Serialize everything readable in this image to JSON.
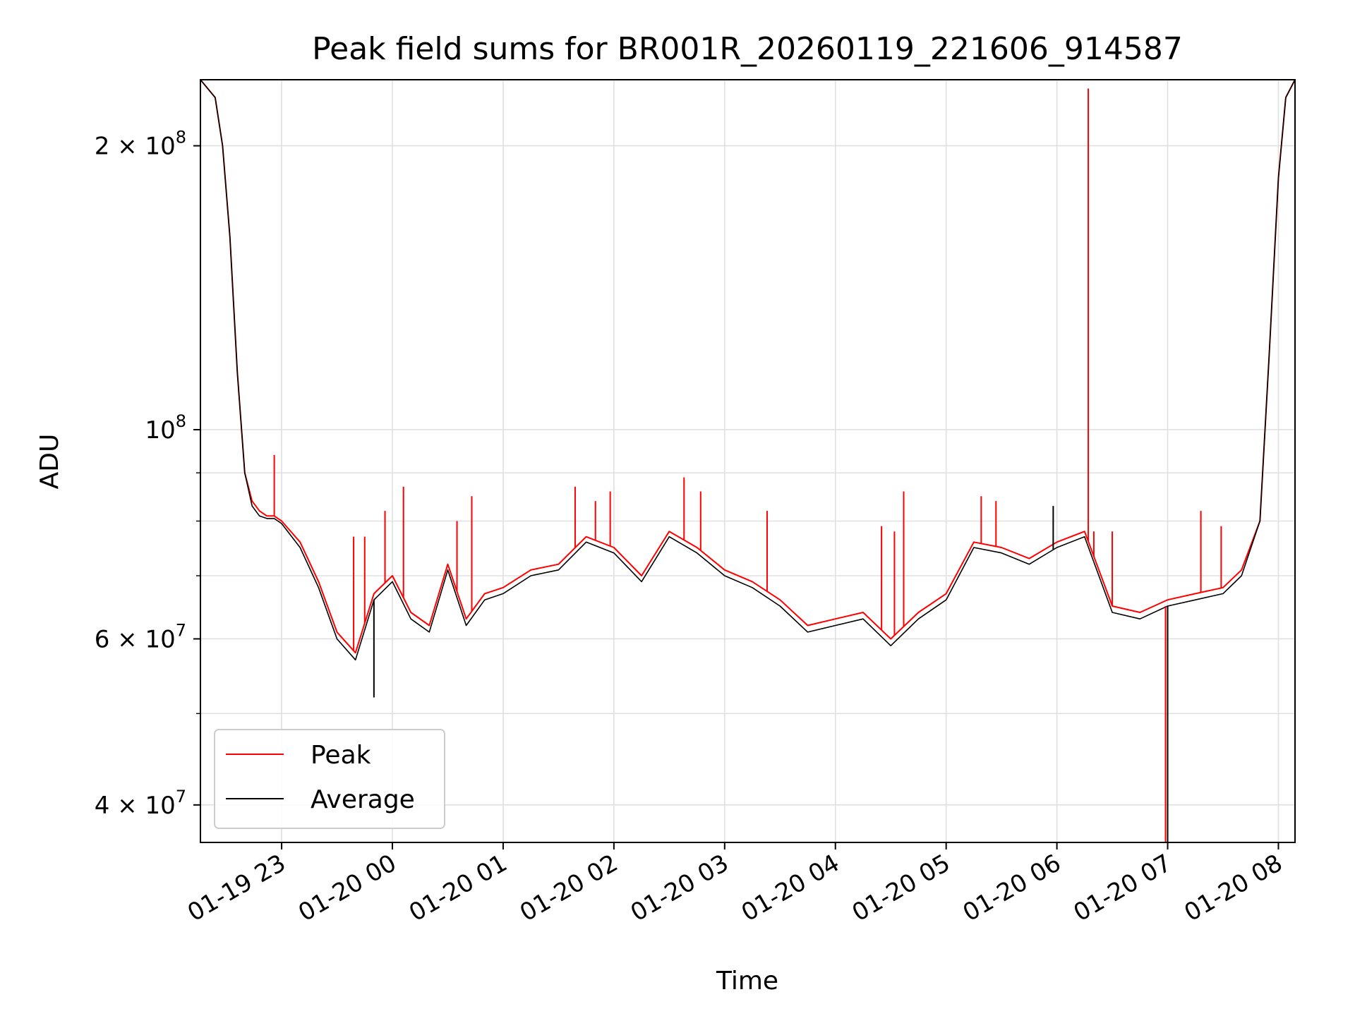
{
  "chart_data": {
    "type": "line",
    "title": "Peak field sums for BR001R_20260119_221606_914587",
    "xlabel": "Time",
    "ylabel": "ADU",
    "yscale": "log",
    "ylim": [
      36500000,
      235000000
    ],
    "xlim": [
      "2026-01-19 22:16",
      "2026-01-20 08:09"
    ],
    "grid": true,
    "legend_position": "lower left",
    "x_ticks": [
      {
        "t": "2026-01-19 23:00",
        "label": "01-19 23"
      },
      {
        "t": "2026-01-20 00:00",
        "label": "01-20 00"
      },
      {
        "t": "2026-01-20 01:00",
        "label": "01-20 01"
      },
      {
        "t": "2026-01-20 02:00",
        "label": "01-20 02"
      },
      {
        "t": "2026-01-20 03:00",
        "label": "01-20 03"
      },
      {
        "t": "2026-01-20 04:00",
        "label": "01-20 04"
      },
      {
        "t": "2026-01-20 05:00",
        "label": "01-20 05"
      },
      {
        "t": "2026-01-20 06:00",
        "label": "01-20 06"
      },
      {
        "t": "2026-01-20 07:00",
        "label": "01-20 07"
      },
      {
        "t": "2026-01-20 08:00",
        "label": "01-20 08"
      }
    ],
    "y_ticks": [
      {
        "value": 40000000,
        "mant": "4",
        "exp": "7"
      },
      {
        "value": 60000000,
        "mant": "6",
        "exp": "7"
      },
      {
        "value": 100000000,
        "mant": "",
        "exp": "8"
      },
      {
        "value": 200000000,
        "mant": "2",
        "exp": "8"
      }
    ],
    "y_minor_ticks": [
      50000000,
      70000000,
      80000000,
      90000000
    ],
    "series": [
      {
        "name": "Peak",
        "color": "#ff0000",
        "x": [
          "2026-01-19 22:16",
          "2026-01-19 22:24",
          "2026-01-19 22:28",
          "2026-01-19 22:32",
          "2026-01-19 22:36",
          "2026-01-19 22:40",
          "2026-01-19 22:44",
          "2026-01-19 22:48",
          "2026-01-19 22:52",
          "2026-01-19 22:56",
          "2026-01-19 23:00",
          "2026-01-19 23:10",
          "2026-01-19 23:20",
          "2026-01-19 23:30",
          "2026-01-19 23:40",
          "2026-01-19 23:50",
          "2026-01-20 00:00",
          "2026-01-20 00:10",
          "2026-01-20 00:20",
          "2026-01-20 00:30",
          "2026-01-20 00:40",
          "2026-01-20 00:50",
          "2026-01-20 01:00",
          "2026-01-20 01:15",
          "2026-01-20 01:30",
          "2026-01-20 01:45",
          "2026-01-20 02:00",
          "2026-01-20 02:15",
          "2026-01-20 02:30",
          "2026-01-20 02:45",
          "2026-01-20 03:00",
          "2026-01-20 03:15",
          "2026-01-20 03:30",
          "2026-01-20 03:45",
          "2026-01-20 04:00",
          "2026-01-20 04:15",
          "2026-01-20 04:30",
          "2026-01-20 04:45",
          "2026-01-20 05:00",
          "2026-01-20 05:15",
          "2026-01-20 05:30",
          "2026-01-20 05:45",
          "2026-01-20 06:00",
          "2026-01-20 06:15",
          "2026-01-20 06:30",
          "2026-01-20 06:45",
          "2026-01-20 07:00",
          "2026-01-20 07:15",
          "2026-01-20 07:30",
          "2026-01-20 07:40",
          "2026-01-20 07:50",
          "2026-01-20 07:55",
          "2026-01-20 08:00",
          "2026-01-20 08:04",
          "2026-01-20 08:09"
        ],
        "values": [
          235000000,
          225000000,
          200000000,
          160000000,
          115000000,
          90000000,
          84000000,
          82000000,
          81000000,
          81000000,
          80000000,
          76000000,
          69000000,
          61000000,
          58000000,
          67000000,
          70000000,
          64000000,
          62000000,
          72000000,
          63000000,
          67000000,
          68000000,
          71000000,
          72000000,
          77000000,
          75000000,
          70000000,
          78000000,
          75000000,
          71000000,
          69000000,
          66000000,
          62000000,
          63000000,
          64000000,
          60000000,
          64000000,
          67000000,
          76000000,
          75000000,
          73000000,
          76000000,
          78000000,
          65000000,
          64000000,
          66000000,
          67000000,
          68000000,
          71000000,
          80000000,
          120000000,
          185000000,
          225000000,
          235000000
        ],
        "spikes": [
          {
            "x": "2026-01-19 22:56",
            "value": 94000000
          },
          {
            "x": "2026-01-19 23:39",
            "value": 77000000
          },
          {
            "x": "2026-01-19 23:45",
            "value": 77000000
          },
          {
            "x": "2026-01-19 23:56",
            "value": 82000000
          },
          {
            "x": "2026-01-20 00:06",
            "value": 87000000
          },
          {
            "x": "2026-01-20 00:35",
            "value": 80000000
          },
          {
            "x": "2026-01-20 00:43",
            "value": 85000000
          },
          {
            "x": "2026-01-20 01:39",
            "value": 87000000
          },
          {
            "x": "2026-01-20 01:50",
            "value": 84000000
          },
          {
            "x": "2026-01-20 01:58",
            "value": 86000000
          },
          {
            "x": "2026-01-20 02:38",
            "value": 89000000
          },
          {
            "x": "2026-01-20 02:47",
            "value": 86000000
          },
          {
            "x": "2026-01-20 03:23",
            "value": 82000000
          },
          {
            "x": "2026-01-20 04:25",
            "value": 79000000
          },
          {
            "x": "2026-01-20 04:32",
            "value": 78000000
          },
          {
            "x": "2026-01-20 04:37",
            "value": 86000000
          },
          {
            "x": "2026-01-20 05:19",
            "value": 85000000
          },
          {
            "x": "2026-01-20 05:27",
            "value": 84000000
          },
          {
            "x": "2026-01-20 06:17",
            "value": 230000000
          },
          {
            "x": "2026-01-20 06:20",
            "value": 78000000
          },
          {
            "x": "2026-01-20 06:30",
            "value": 78000000
          },
          {
            "x": "2026-01-20 07:18",
            "value": 82000000
          },
          {
            "x": "2026-01-20 07:29",
            "value": 79000000
          }
        ]
      },
      {
        "name": "Average",
        "color": "#000000",
        "x": [
          "2026-01-19 22:16",
          "2026-01-19 22:24",
          "2026-01-19 22:28",
          "2026-01-19 22:32",
          "2026-01-19 22:36",
          "2026-01-19 22:40",
          "2026-01-19 22:44",
          "2026-01-19 22:48",
          "2026-01-19 22:52",
          "2026-01-19 22:56",
          "2026-01-19 23:00",
          "2026-01-19 23:10",
          "2026-01-19 23:20",
          "2026-01-19 23:30",
          "2026-01-19 23:40",
          "2026-01-19 23:50",
          "2026-01-20 00:00",
          "2026-01-20 00:10",
          "2026-01-20 00:20",
          "2026-01-20 00:30",
          "2026-01-20 00:40",
          "2026-01-20 00:50",
          "2026-01-20 01:00",
          "2026-01-20 01:15",
          "2026-01-20 01:30",
          "2026-01-20 01:45",
          "2026-01-20 02:00",
          "2026-01-20 02:15",
          "2026-01-20 02:30",
          "2026-01-20 02:45",
          "2026-01-20 03:00",
          "2026-01-20 03:15",
          "2026-01-20 03:30",
          "2026-01-20 03:45",
          "2026-01-20 04:00",
          "2026-01-20 04:15",
          "2026-01-20 04:30",
          "2026-01-20 04:45",
          "2026-01-20 05:00",
          "2026-01-20 05:15",
          "2026-01-20 05:30",
          "2026-01-20 05:45",
          "2026-01-20 06:00",
          "2026-01-20 06:15",
          "2026-01-20 06:30",
          "2026-01-20 06:45",
          "2026-01-20 07:00",
          "2026-01-20 07:15",
          "2026-01-20 07:30",
          "2026-01-20 07:40",
          "2026-01-20 07:50",
          "2026-01-20 07:55",
          "2026-01-20 08:00",
          "2026-01-20 08:04",
          "2026-01-20 08:09"
        ],
        "values": [
          235000000,
          225000000,
          200000000,
          160000000,
          115000000,
          90000000,
          83000000,
          81000000,
          80500000,
          80500000,
          79500000,
          75000000,
          68000000,
          60000000,
          57000000,
          66000000,
          69000000,
          63000000,
          61000000,
          71000000,
          62000000,
          66000000,
          67000000,
          70000000,
          71000000,
          76000000,
          74000000,
          69000000,
          77000000,
          74000000,
          70000000,
          68000000,
          65000000,
          61000000,
          62000000,
          63000000,
          59000000,
          63000000,
          66000000,
          75000000,
          74000000,
          72000000,
          75000000,
          77000000,
          64000000,
          63000000,
          65000000,
          66000000,
          67000000,
          70000000,
          80000000,
          120000000,
          185000000,
          225000000,
          235000000
        ],
        "dips": [
          {
            "x": "2026-01-19 23:50",
            "value": 52000000
          },
          {
            "x": "2026-01-20 05:58",
            "value": 83000000
          },
          {
            "x": "2026-01-20 07:00",
            "value": 36500000
          }
        ]
      }
    ]
  }
}
